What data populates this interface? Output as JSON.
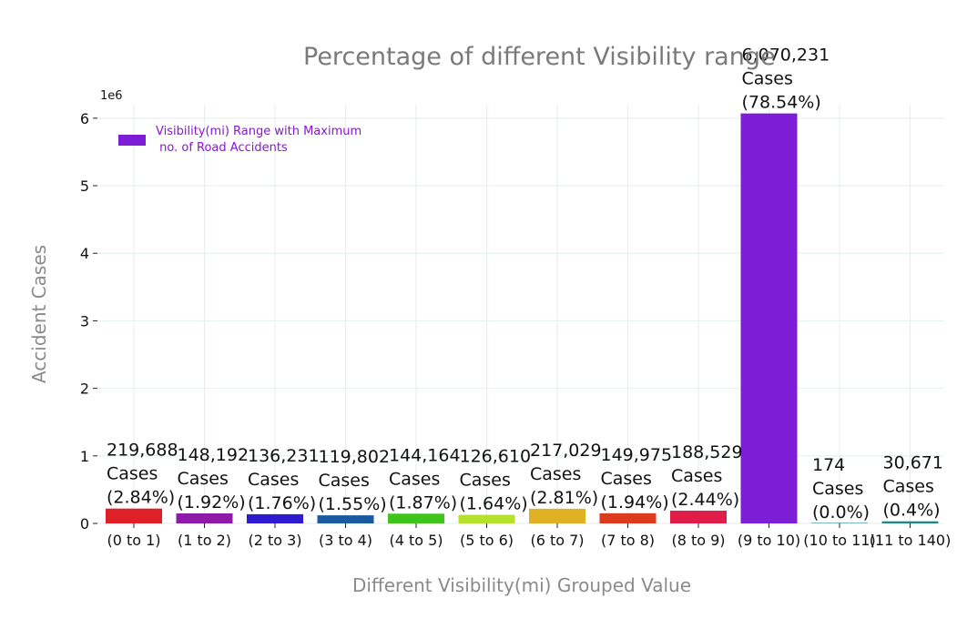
{
  "chart_data": {
    "type": "bar",
    "title": "Percentage of different Visibility range",
    "xlabel": "Different Visibility(mi) Grouped Value",
    "ylabel": "Accident Cases",
    "y_exponent_label": "1e6",
    "ylim": [
      0,
      6.2
    ],
    "yticks": [
      "0",
      "1",
      "2",
      "3",
      "4",
      "5",
      "6"
    ],
    "grid": true,
    "legend": {
      "placement": "top-left",
      "label_line1": "Visibility(mi) Range with Maximum",
      "label_line2": " no. of Road Accidents",
      "color": "#7d1ed6"
    },
    "categories": [
      "(0 to 1)",
      "(1 to 2)",
      "(2 to 3)",
      "(3 to 4)",
      "(4 to 5)",
      "(5 to 6)",
      "(6 to 7)",
      "(7 to 8)",
      "(8 to 9)",
      "(9 to 10)",
      "(10 to 11)",
      "(11 to 140)"
    ],
    "values": [
      219688,
      148192,
      136231,
      119802,
      144164,
      126610,
      217029,
      149975,
      188529,
      6070231,
      174,
      30671
    ],
    "colors": [
      "#e02027",
      "#8e1aa8",
      "#2e1bd0",
      "#1a5aa0",
      "#3fc41c",
      "#b6e12a",
      "#e0b124",
      "#dd3a1e",
      "#e01c48",
      "#7d1ed6",
      "#2a8a8a",
      "#1a8a80"
    ],
    "labels": {
      "counts": [
        "219,688",
        "148,192",
        "136,231",
        "119,802",
        "144,164",
        "126,610",
        "217,029",
        "149,975",
        "188,529",
        "6,070,231",
        "174",
        "30,671"
      ],
      "unit": "Cases",
      "percents": [
        "(2.84%)",
        "(1.92%)",
        "(1.76%)",
        "(1.55%)",
        "(1.87%)",
        "(1.64%)",
        "(2.81%)",
        "(1.94%)",
        "(2.44%)",
        "(78.54%)",
        "(0.0%)",
        "(0.4%)"
      ]
    }
  }
}
